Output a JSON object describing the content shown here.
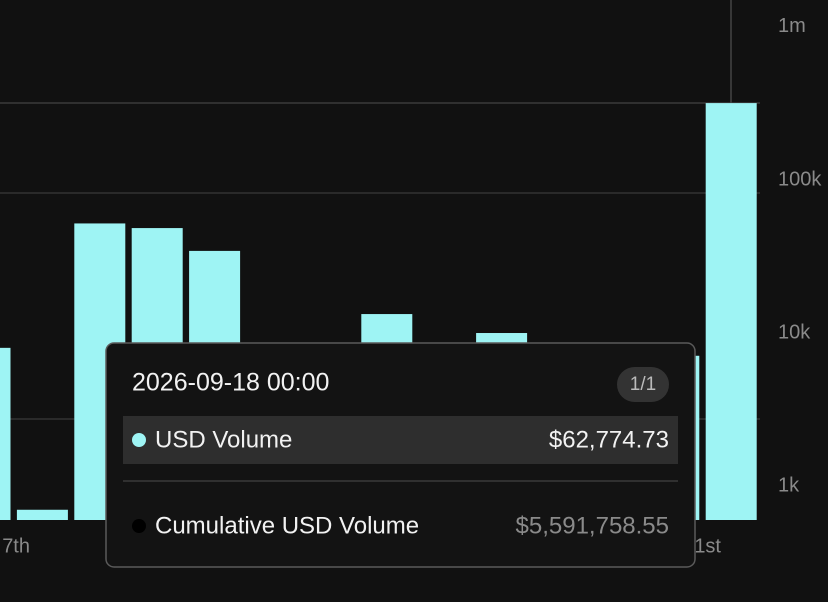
{
  "chart_data": {
    "type": "bar",
    "log_scale": true,
    "color": "#9ef4f4",
    "categories": [
      "7th",
      null,
      null,
      null,
      null,
      null,
      null,
      null,
      null,
      null,
      null,
      null,
      null,
      "1st"
    ],
    "values": [
      8000,
      700,
      52000,
      48500,
      34400,
      null,
      null,
      13300,
      null,
      10000,
      null,
      null,
      7100,
      318000
    ],
    "ylim": [
      600,
      1500000
    ],
    "yticks": [
      {
        "value": 1000,
        "label": "1k"
      },
      {
        "value": 10000,
        "label": "10k"
      },
      {
        "value": 100000,
        "label": "100k"
      },
      {
        "value": 1000000,
        "label": "1m"
      }
    ],
    "tooltip": {
      "title": "2026-09-18 00:00",
      "badge": "1/1",
      "rows": [
        {
          "label": "USD Volume",
          "value": "$62,774.73",
          "color": "#9ef4f4"
        },
        {
          "label": "Cumulative USD Volume",
          "value": "$5,591,758.55",
          "color": "#000000"
        }
      ]
    }
  }
}
